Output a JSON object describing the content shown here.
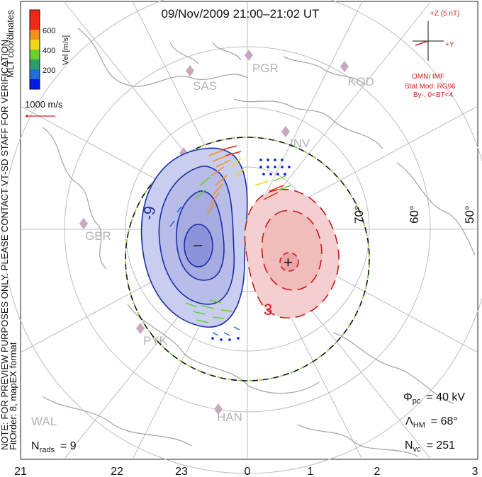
{
  "header": {
    "title": "09/Nov/2009 21:00–21:02 UT"
  },
  "colorbar": {
    "axis_label": "Vel [m/s]",
    "ticks": [
      "600",
      "400",
      "200"
    ],
    "colors": [
      "#0018e8",
      "#1e6fd8",
      "#2aa06a",
      "#6bd02a",
      "#f0d51a",
      "#f5901c",
      "#ee2a12"
    ]
  },
  "coordinate_system": "MLT coordinates",
  "scale_vector": {
    "label": "1000 m/s",
    "color": "#d62020"
  },
  "imf": {
    "z_label": "+Z (5 nT)",
    "y_label": "+Y",
    "source": "OMNI IMF",
    "model": "Stat Mod: RG96",
    "condition": "By-, 0<BT<4",
    "color": "#d62020"
  },
  "sidebar_notice": {
    "line1": "NOTE: FOR PREVIEW PURPOSES ONLY. PLEASE CONTACT VT-SD STAFF FOR VERIFICATION.",
    "line2": "FitOrder: 8, mapEX format"
  },
  "stations": [
    "PGR",
    "KOD",
    "SAS",
    "INV",
    "GBR",
    "PYK",
    "WAL",
    "HAN"
  ],
  "latitude_labels": [
    "70°",
    "60°",
    "50°"
  ],
  "mlt_axis": [
    "21",
    "22",
    "23",
    "0",
    "1",
    "2",
    "3"
  ],
  "contours": {
    "negative_label": "-9",
    "positive_label": "3",
    "min_symbol": "–",
    "max_symbol": "+",
    "neg_fill": "#c9cdef",
    "pos_fill": "#f5cfcf",
    "neg_line": "#1a2fa8",
    "pos_line": "#cc1a1a"
  },
  "stats": {
    "phi_pc_symbol": "Φ",
    "phi_pc_sub": "pc",
    "phi_pc_value": "= 40 kV",
    "lambda_symbol": "Λ",
    "lambda_sub": "HM",
    "lambda_value": "= 68°",
    "nvc_symbol": "N",
    "nvc_sub": "vc",
    "nvc_value": "= 251",
    "nrads_symbol": "N",
    "nrads_sub": "rads",
    "nrads_value": "= 9"
  }
}
